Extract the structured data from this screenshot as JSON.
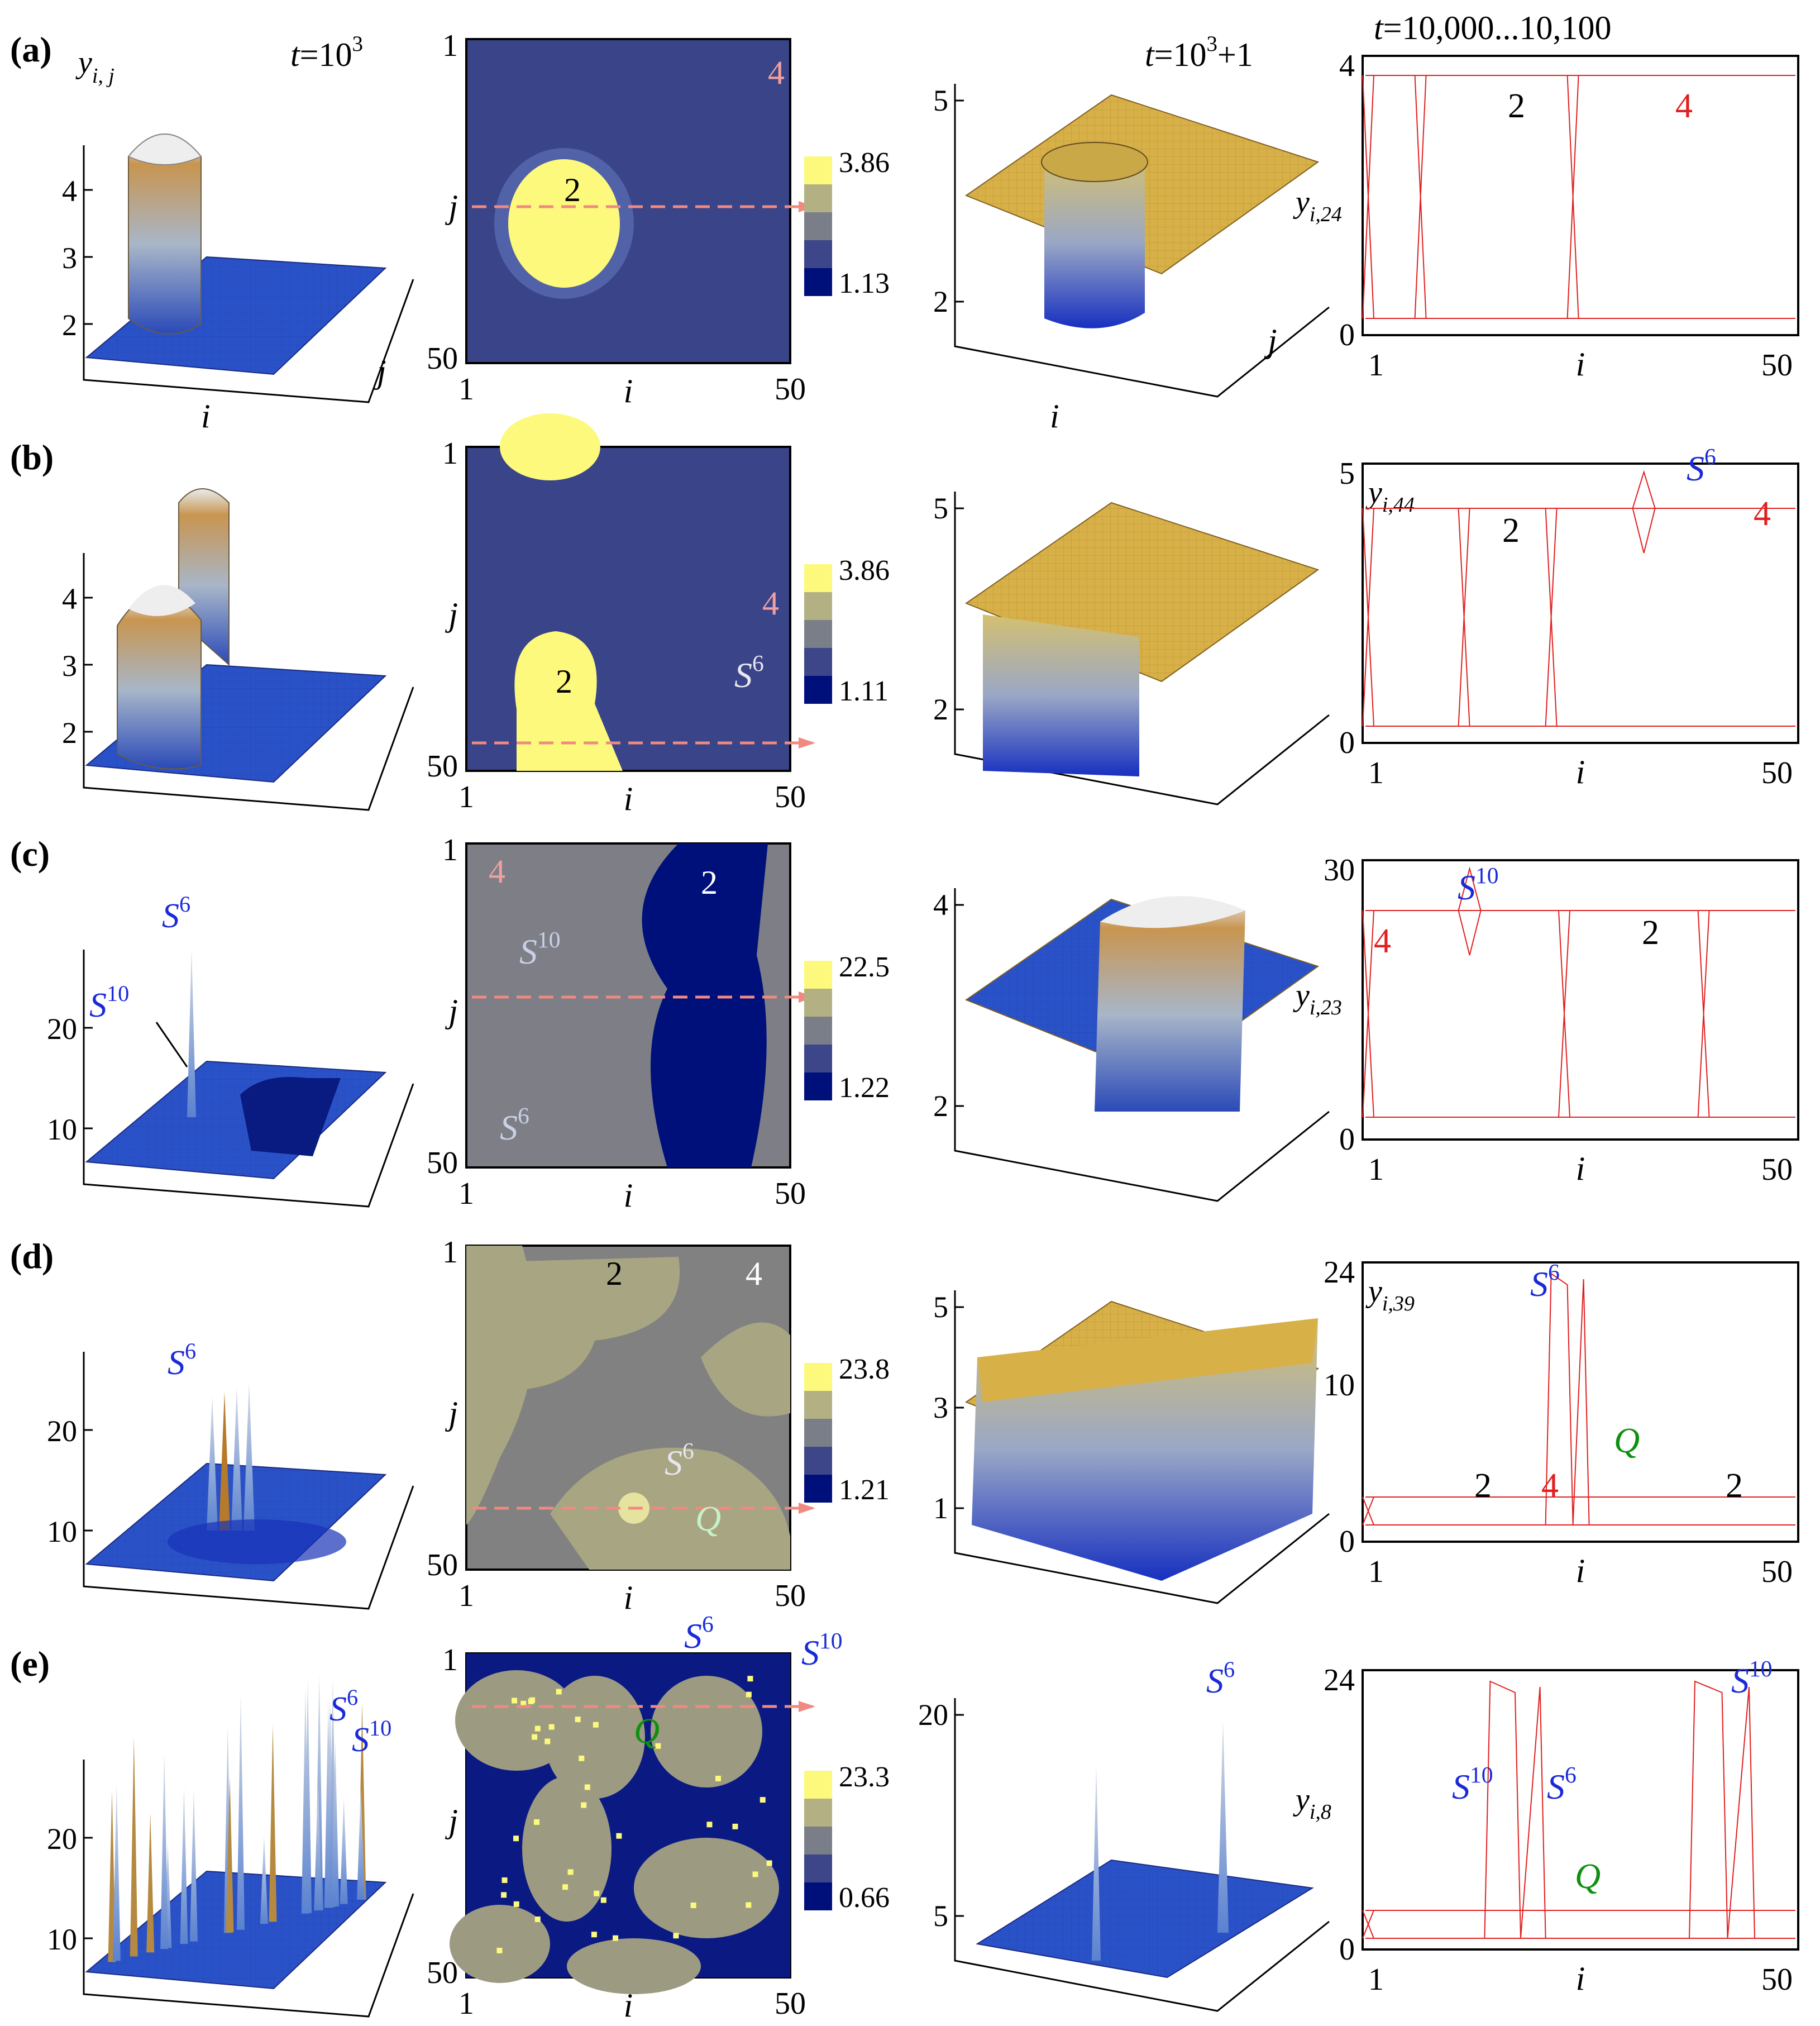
{
  "figure": {
    "time_labels": {
      "col1": "t = 10^3",
      "col3": "t = 10^3 + 1",
      "col4": "t = 10,000...10,100"
    },
    "axis_letters": {
      "i": "i",
      "j": "j",
      "y": "y",
      "y_sub_ij": "i, j"
    },
    "rows": [
      {
        "label": "(a)",
        "surface1": {
          "ticks": [
            "2",
            "3",
            "4"
          ],
          "annotations": []
        },
        "heatmap": {
          "y_ticks": [
            "1",
            "j",
            "50"
          ],
          "x_ticks": [
            "1",
            "i",
            "50"
          ],
          "colorbar_max": "3.86",
          "colorbar_min": "1.13",
          "region_labels": [
            "2",
            "4"
          ],
          "annotations": []
        },
        "surface3": {
          "ticks": [
            "2",
            "5"
          ],
          "annotations": []
        },
        "lineplot": {
          "ylabel_sub": "i,24",
          "y_ticks": [
            "0",
            "4"
          ],
          "x_ticks": [
            "1",
            "i",
            "50"
          ],
          "labels": [
            "2",
            "4"
          ],
          "annotations": []
        }
      },
      {
        "label": "(b)",
        "surface1": {
          "ticks": [
            "2",
            "3",
            "4"
          ],
          "annotations": []
        },
        "heatmap": {
          "y_ticks": [
            "1",
            "j",
            "50"
          ],
          "x_ticks": [
            "1",
            "i",
            "50"
          ],
          "colorbar_max": "3.86",
          "colorbar_min": "1.11",
          "region_labels": [
            "2",
            "4"
          ],
          "annotations": [
            "S6"
          ]
        },
        "surface3": {
          "ticks": [
            "2",
            "5"
          ],
          "annotations": []
        },
        "lineplot": {
          "ylabel_sub": "i,44",
          "y_ticks": [
            "0",
            "5"
          ],
          "x_ticks": [
            "1",
            "i",
            "50"
          ],
          "labels": [
            "2",
            "4"
          ],
          "annotations": [
            "S6"
          ]
        }
      },
      {
        "label": "(c)",
        "surface1": {
          "ticks": [
            "10",
            "20"
          ],
          "annotations": [
            "S6",
            "S10"
          ]
        },
        "heatmap": {
          "y_ticks": [
            "1",
            "j",
            "50"
          ],
          "x_ticks": [
            "1",
            "i",
            "50"
          ],
          "colorbar_max": "22.5",
          "colorbar_min": "1.22",
          "region_labels": [
            "4",
            "2"
          ],
          "annotations": [
            "S10",
            "S6"
          ]
        },
        "surface3": {
          "ticks": [
            "2",
            "4"
          ],
          "annotations": []
        },
        "lineplot": {
          "ylabel_sub": "i,23",
          "y_ticks": [
            "0",
            "30"
          ],
          "x_ticks": [
            "1",
            "i",
            "50"
          ],
          "labels": [
            "4",
            "2"
          ],
          "annotations": [
            "S10"
          ]
        }
      },
      {
        "label": "(d)",
        "surface1": {
          "ticks": [
            "10",
            "20"
          ],
          "annotations": [
            "S6"
          ]
        },
        "heatmap": {
          "y_ticks": [
            "1",
            "j",
            "50"
          ],
          "x_ticks": [
            "1",
            "i",
            "50"
          ],
          "colorbar_max": "23.8",
          "colorbar_min": "1.21",
          "region_labels": [
            "2",
            "4"
          ],
          "annotations": [
            "S6",
            "Q"
          ]
        },
        "surface3": {
          "ticks": [
            "1",
            "3",
            "5"
          ],
          "annotations": []
        },
        "lineplot": {
          "ylabel_sub": "i,39",
          "y_ticks": [
            "0",
            "10",
            "24"
          ],
          "x_ticks": [
            "1",
            "i",
            "50"
          ],
          "labels": [
            "2",
            "4",
            "2"
          ],
          "annotations": [
            "S6",
            "Q"
          ]
        }
      },
      {
        "label": "(e)",
        "surface1": {
          "ticks": [
            "10",
            "20"
          ],
          "annotations": [
            "S6",
            "S10"
          ]
        },
        "heatmap": {
          "y_ticks": [
            "1",
            "j",
            "50"
          ],
          "x_ticks": [
            "1",
            "i",
            "50"
          ],
          "colorbar_max": "23.3",
          "colorbar_min": "0.66",
          "region_labels": [],
          "annotations": [
            "S6",
            "S10",
            "Q"
          ]
        },
        "surface3": {
          "ticks": [
            "5",
            "20"
          ],
          "annotations": [
            "S6"
          ]
        },
        "lineplot": {
          "ylabel_sub": "i,8",
          "y_ticks": [
            "0",
            "24"
          ],
          "x_ticks": [
            "1",
            "i",
            "50"
          ],
          "labels": [],
          "annotations": [
            "S10",
            "S6",
            "S10",
            "Q"
          ]
        }
      }
    ]
  }
}
